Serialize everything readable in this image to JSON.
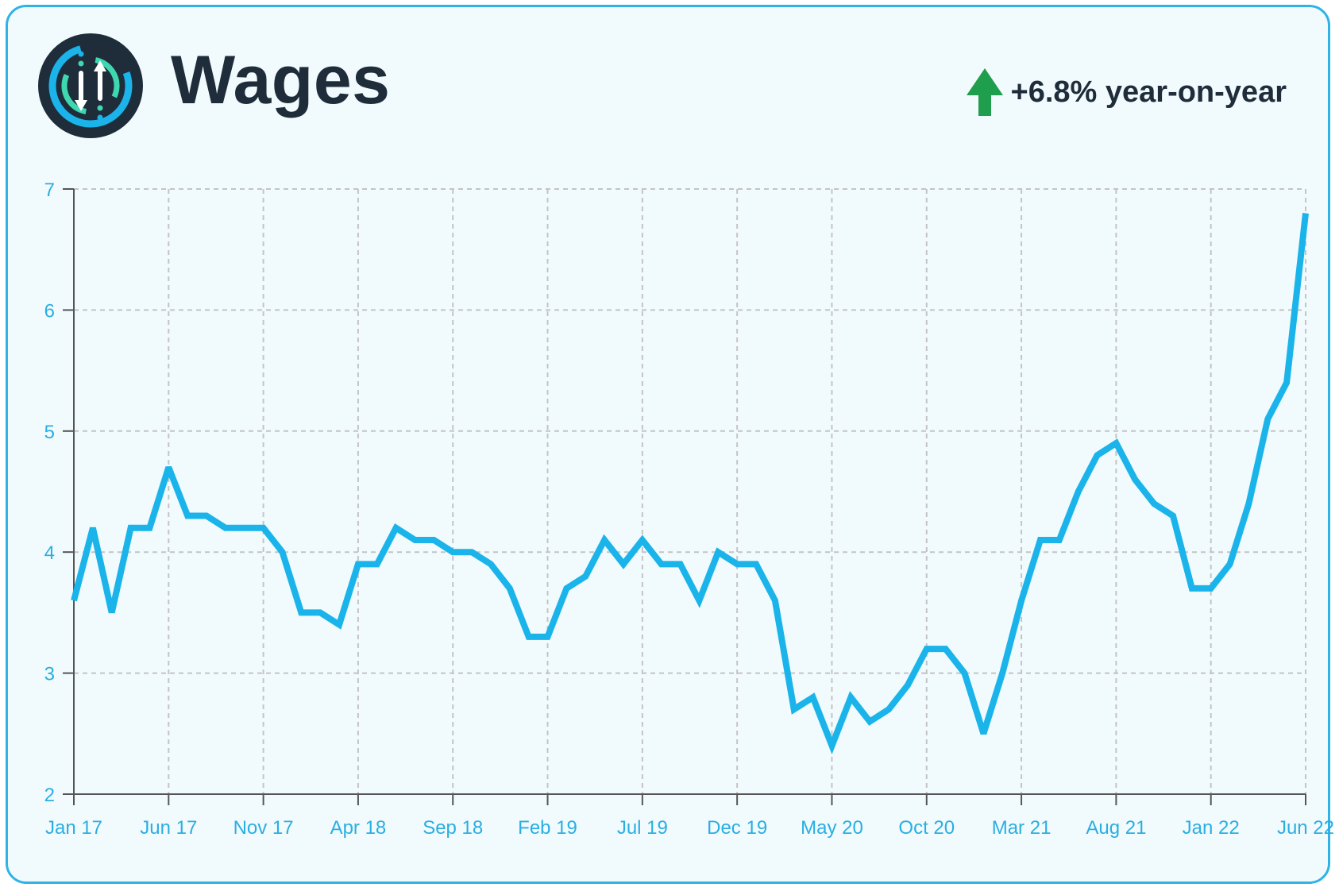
{
  "header": {
    "title": "Wages",
    "yoy_text": "+6.8% year-on-year",
    "logo_icon": "info-indicator-logo-icon",
    "trend_icon": "up-arrow-icon"
  },
  "colors": {
    "line": "#1ab4ea",
    "border": "#2fb3e6",
    "background": "#f1fbfd",
    "up_arrow": "#1f9e4e",
    "title": "#1f2d3b",
    "tick_label": "#2aaee2",
    "grid": "#c4c4c4"
  },
  "chart_data": {
    "type": "line",
    "title": "",
    "xlabel": "",
    "ylabel": "",
    "ylim": [
      2,
      7
    ],
    "yticks": [
      2,
      3,
      4,
      5,
      6,
      7
    ],
    "grid": true,
    "x_tick_labels": [
      "Jan 17",
      "Jun 17",
      "Nov 17",
      "Apr 18",
      "Sep 18",
      "Feb 19",
      "Jul 19",
      "Dec 19",
      "May 20",
      "Oct 20",
      "Mar 21",
      "Aug 21",
      "Jan 22",
      "Jun 22"
    ],
    "x_start": "Jan 17",
    "x_end": "Jun 22",
    "series": [
      {
        "name": "",
        "values": [
          3.6,
          4.2,
          3.5,
          4.2,
          4.2,
          4.7,
          4.3,
          4.3,
          4.2,
          4.2,
          4.2,
          4.0,
          3.5,
          3.5,
          3.4,
          3.9,
          3.9,
          4.2,
          4.1,
          4.1,
          4.0,
          4.0,
          3.9,
          3.7,
          3.3,
          3.3,
          3.7,
          3.8,
          4.1,
          3.9,
          4.1,
          3.9,
          3.9,
          3.6,
          4.0,
          3.9,
          3.9,
          3.6,
          2.7,
          2.8,
          2.4,
          2.8,
          2.6,
          2.7,
          2.9,
          3.2,
          3.2,
          3.0,
          2.5,
          3.0,
          3.6,
          4.1,
          4.1,
          4.5,
          4.8,
          4.9,
          4.6,
          4.4,
          4.3,
          3.7,
          3.7,
          3.9,
          4.4,
          5.1,
          5.4,
          6.8
        ]
      }
    ]
  }
}
